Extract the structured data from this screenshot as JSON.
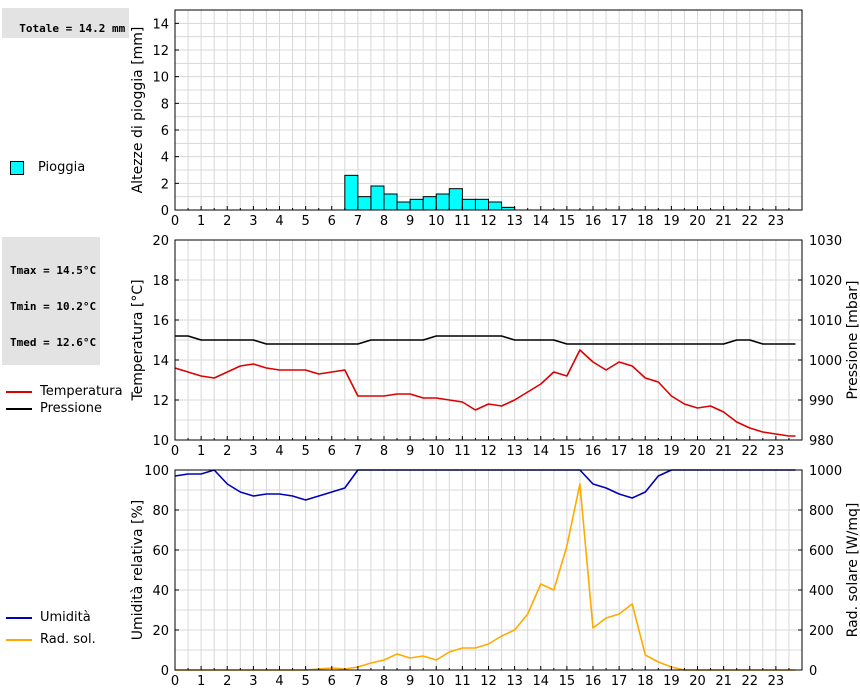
{
  "stats": {
    "totale": "Totale = 14.2 mm",
    "tmax": "Tmax = 14.5°C",
    "tmin": "Tmin = 10.2°C",
    "tmed": "Tmed = 12.6°C"
  },
  "colors": {
    "rain": "#00ffff",
    "temperature": "#dd0000",
    "pressure": "#000000",
    "humidity": "#0000bb",
    "radiation": "#ffaa00"
  },
  "chart_data": [
    {
      "type": "bar",
      "legend": [
        "Pioggia"
      ],
      "ylabel": "Altezze di pioggia [mm]",
      "xlim": [
        0,
        24
      ],
      "ylim": [
        0,
        15
      ],
      "xticks": [
        0,
        1,
        2,
        3,
        4,
        5,
        6,
        7,
        8,
        9,
        10,
        11,
        12,
        13,
        14,
        15,
        16,
        17,
        18,
        19,
        20,
        21,
        22,
        23
      ],
      "yticks": [
        0,
        2,
        4,
        6,
        8,
        10,
        12,
        14
      ],
      "grid": true,
      "bar_width": 0.5,
      "series": [
        {
          "name": "Pioggia",
          "x": [
            6.5,
            7.0,
            7.5,
            8.0,
            8.5,
            9.0,
            9.5,
            10.0,
            10.5,
            11.0,
            11.5,
            12.0,
            12.5
          ],
          "values": [
            2.6,
            1.0,
            1.8,
            1.2,
            0.6,
            0.8,
            1.0,
            1.2,
            1.6,
            0.8,
            0.8,
            0.6,
            0.2
          ]
        }
      ]
    },
    {
      "type": "line",
      "legend": [
        "Temperatura",
        "Pressione"
      ],
      "ylabel": "Temperatura [°C]",
      "ylabel_right": "Pressione [mbar]",
      "xlim": [
        0,
        24
      ],
      "ylim": [
        10,
        20
      ],
      "ylim_right": [
        980,
        1030
      ],
      "xticks": [
        0,
        1,
        2,
        3,
        4,
        5,
        6,
        7,
        8,
        9,
        10,
        11,
        12,
        13,
        14,
        15,
        16,
        17,
        18,
        19,
        20,
        21,
        22,
        23
      ],
      "yticks": [
        10,
        12,
        14,
        16,
        18,
        20
      ],
      "yticks_right": [
        980,
        990,
        1000,
        1010,
        1020,
        1030
      ],
      "grid": true,
      "series": [
        {
          "name": "Temperatura",
          "axis": "left",
          "x": [
            0,
            0.5,
            1,
            1.5,
            2,
            2.5,
            3,
            3.5,
            4,
            4.5,
            5,
            5.5,
            6,
            6.5,
            7,
            7.5,
            8,
            8.5,
            9,
            9.5,
            10,
            10.5,
            11,
            11.5,
            12,
            12.5,
            13,
            13.5,
            14,
            14.5,
            15,
            15.5,
            16,
            16.5,
            17,
            17.5,
            18,
            18.5,
            19,
            19.5,
            20,
            20.5,
            21,
            21.5,
            22,
            22.5,
            23,
            23.5,
            23.75
          ],
          "values": [
            13.6,
            13.4,
            13.2,
            13.1,
            13.4,
            13.7,
            13.8,
            13.6,
            13.5,
            13.5,
            13.5,
            13.3,
            13.4,
            13.5,
            12.2,
            12.2,
            12.2,
            12.3,
            12.3,
            12.1,
            12.1,
            12.0,
            11.9,
            11.5,
            11.8,
            11.7,
            12.0,
            12.4,
            12.8,
            13.4,
            13.2,
            14.5,
            13.9,
            13.5,
            13.9,
            13.7,
            13.1,
            12.9,
            12.2,
            11.8,
            11.6,
            11.7,
            11.4,
            10.9,
            10.6,
            10.4,
            10.3,
            10.2,
            10.2
          ]
        },
        {
          "name": "Pressione",
          "axis": "right",
          "x": [
            0,
            0.5,
            1,
            1.5,
            2,
            2.5,
            3,
            3.5,
            4,
            4.5,
            5,
            5.5,
            6,
            6.5,
            7,
            7.5,
            8,
            8.5,
            9,
            9.5,
            10,
            10.5,
            11,
            11.5,
            12,
            12.5,
            13,
            13.5,
            14,
            14.5,
            15,
            15.5,
            16,
            16.5,
            17,
            17.5,
            18,
            18.5,
            19,
            19.5,
            20,
            20.5,
            21,
            21.5,
            22,
            22.5,
            23,
            23.5,
            23.75
          ],
          "values": [
            1006,
            1006,
            1005,
            1005,
            1005,
            1005,
            1005,
            1004,
            1004,
            1004,
            1004,
            1004,
            1004,
            1004,
            1004,
            1005,
            1005,
            1005,
            1005,
            1005,
            1006,
            1006,
            1006,
            1006,
            1006,
            1006,
            1005,
            1005,
            1005,
            1005,
            1004,
            1004,
            1004,
            1004,
            1004,
            1004,
            1004,
            1004,
            1004,
            1004,
            1004,
            1004,
            1004,
            1005,
            1005,
            1004,
            1004,
            1004,
            1004
          ]
        }
      ]
    },
    {
      "type": "line",
      "legend": [
        "Umidità",
        "Rad. sol."
      ],
      "ylabel": "Umidità relativa [%]",
      "ylabel_right": "Rad. solare [W/mq]",
      "xlim": [
        0,
        24
      ],
      "ylim": [
        0,
        100
      ],
      "ylim_right": [
        0,
        1000
      ],
      "xticks": [
        0,
        1,
        2,
        3,
        4,
        5,
        6,
        7,
        8,
        9,
        10,
        11,
        12,
        13,
        14,
        15,
        16,
        17,
        18,
        19,
        20,
        21,
        22,
        23
      ],
      "yticks": [
        0,
        20,
        40,
        60,
        80,
        100
      ],
      "yticks_right": [
        0,
        200,
        400,
        600,
        800,
        1000
      ],
      "grid": true,
      "series": [
        {
          "name": "Umidità",
          "axis": "left",
          "x": [
            0,
            0.5,
            1,
            1.5,
            2,
            2.5,
            3,
            3.5,
            4,
            4.5,
            5,
            5.5,
            6,
            6.5,
            7,
            7.5,
            8,
            9,
            10,
            11,
            12,
            13,
            14,
            15,
            15.5,
            16,
            16.5,
            17,
            17.5,
            18,
            18.5,
            19,
            20,
            21,
            22,
            23,
            23.75
          ],
          "values": [
            97,
            98,
            98,
            100,
            93,
            89,
            87,
            88,
            88,
            87,
            85,
            87,
            89,
            91,
            100,
            100,
            100,
            100,
            100,
            100,
            100,
            100,
            100,
            100,
            100,
            93,
            91,
            88,
            86,
            89,
            97,
            100,
            100,
            100,
            100,
            100,
            100
          ]
        },
        {
          "name": "Rad. sol.",
          "axis": "right",
          "x": [
            0,
            1,
            2,
            3,
            4,
            5,
            5.5,
            6,
            6.5,
            7,
            7.5,
            8,
            8.5,
            9,
            9.5,
            10,
            10.5,
            11,
            11.5,
            12,
            12.5,
            13,
            13.5,
            14,
            14.5,
            15,
            15.5,
            16,
            16.5,
            17,
            17.5,
            18,
            18.5,
            19,
            19.5,
            20,
            21,
            22,
            23,
            23.75
          ],
          "values": [
            0,
            0,
            0,
            0,
            0,
            0,
            5,
            10,
            5,
            15,
            35,
            50,
            80,
            60,
            70,
            50,
            90,
            110,
            110,
            130,
            170,
            200,
            280,
            430,
            400,
            620,
            930,
            210,
            260,
            280,
            330,
            75,
            40,
            15,
            0,
            0,
            0,
            0,
            0,
            0
          ]
        }
      ]
    }
  ]
}
